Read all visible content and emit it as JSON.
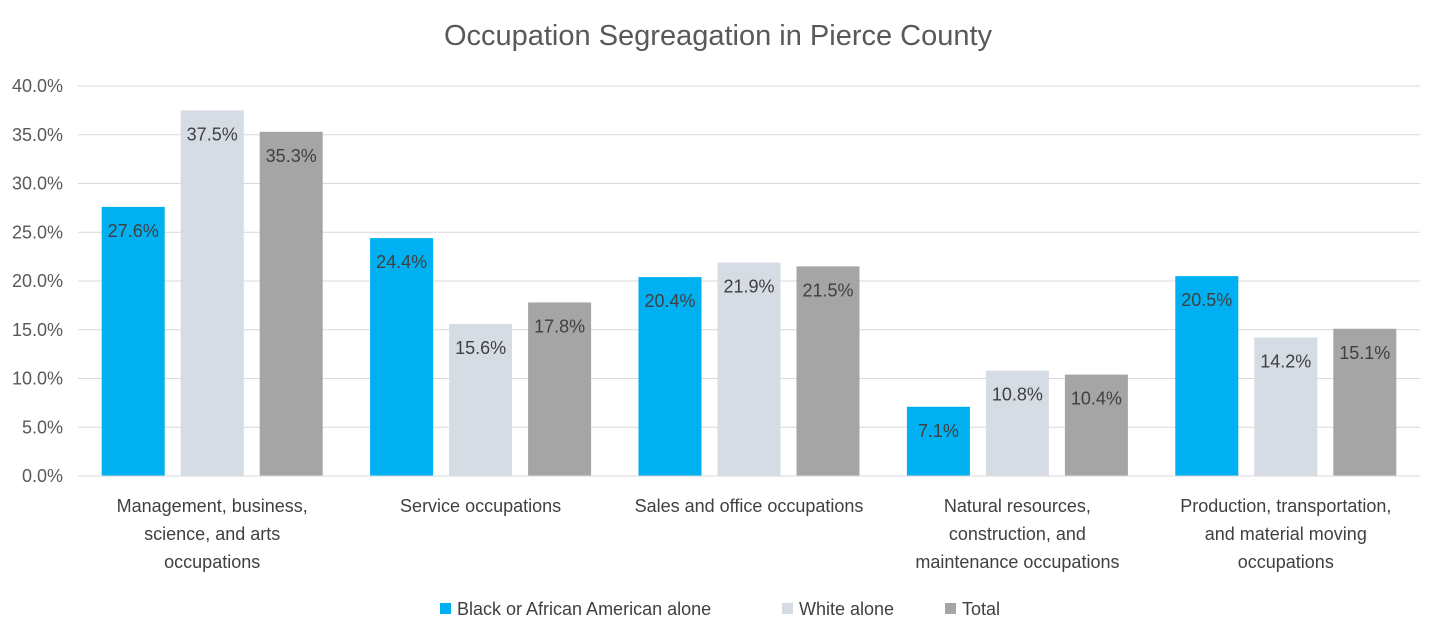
{
  "chart_data": {
    "type": "bar",
    "title": "Occupation Segreagation in Pierce County",
    "categories": [
      [
        "Management, business,",
        "science, and arts",
        "occupations"
      ],
      [
        "Service occupations"
      ],
      [
        "Sales and office occupations"
      ],
      [
        "Natural resources,",
        "construction, and",
        "maintenance occupations"
      ],
      [
        "Production, transportation,",
        "and material moving",
        "occupations"
      ]
    ],
    "series": [
      {
        "name": "Black or African American alone",
        "color": "#00b0f0",
        "values": [
          27.6,
          24.4,
          20.4,
          7.1,
          20.5
        ],
        "labels": [
          "27.6%",
          "24.4%",
          "20.4%",
          "7.1%",
          "20.5%"
        ]
      },
      {
        "name": "White alone",
        "color": "#d6dce4",
        "values": [
          37.5,
          15.6,
          21.9,
          10.8,
          14.2
        ],
        "labels": [
          "37.5%",
          "15.6%",
          "21.9%",
          "10.8%",
          "14.2%"
        ]
      },
      {
        "name": "Total",
        "color": "#a5a5a5",
        "values": [
          35.3,
          17.8,
          21.5,
          10.4,
          15.1
        ],
        "labels": [
          "35.3%",
          "17.8%",
          "21.5%",
          "10.4%",
          "15.1%"
        ]
      }
    ],
    "yticks": [
      "0.0%",
      "5.0%",
      "10.0%",
      "15.0%",
      "20.0%",
      "25.0%",
      "30.0%",
      "35.0%",
      "40.0%"
    ],
    "ylim": [
      0,
      40
    ],
    "grid": true,
    "legend": "bottom"
  }
}
